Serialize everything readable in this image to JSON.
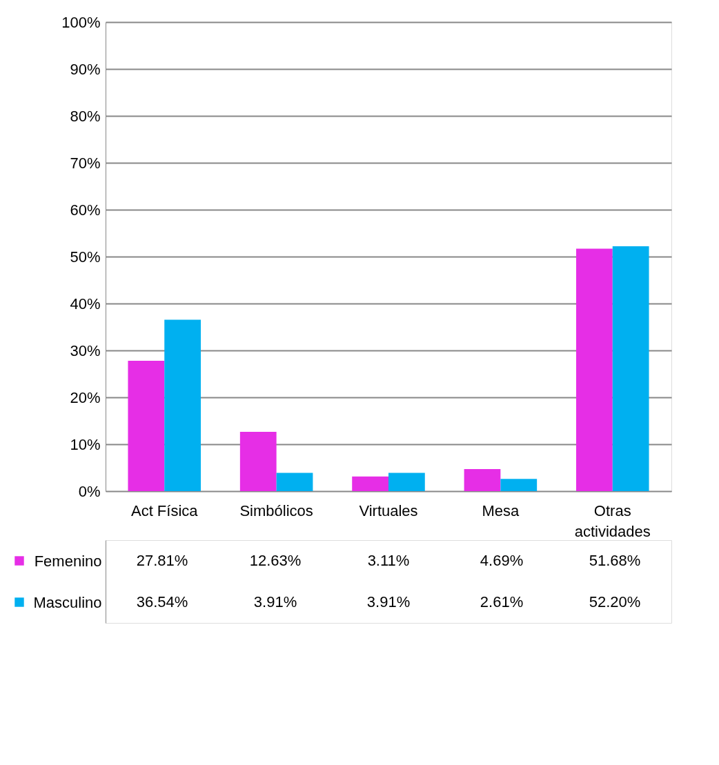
{
  "chart_data": {
    "type": "bar",
    "categories": [
      "Act Física",
      "Simbólicos",
      "Virtuales",
      "Mesa",
      "Otras actividades"
    ],
    "series": [
      {
        "name": "Femenino",
        "color": "#e62ee6",
        "values": [
          27.81,
          12.63,
          3.11,
          4.69,
          51.68
        ],
        "value_labels": [
          "27.81%",
          "12.63%",
          "3.11%",
          "4.69%",
          "51.68%"
        ]
      },
      {
        "name": "Masculino",
        "color": "#00b0f0",
        "values": [
          36.54,
          3.91,
          3.91,
          2.61,
          52.2
        ],
        "value_labels": [
          "36.54%",
          "3.91%",
          "3.91%",
          "2.61%",
          "52.20%"
        ]
      }
    ],
    "ylim": [
      0,
      100
    ],
    "yticks": [
      {
        "value": 0,
        "label": "0%"
      },
      {
        "value": 10,
        "label": "10%"
      },
      {
        "value": 20,
        "label": "20%"
      },
      {
        "value": 30,
        "label": "30%"
      },
      {
        "value": 40,
        "label": "40%"
      },
      {
        "value": 50,
        "label": "50%"
      },
      {
        "value": 60,
        "label": "60%"
      },
      {
        "value": 70,
        "label": "70%"
      },
      {
        "value": 80,
        "label": "80%"
      },
      {
        "value": 90,
        "label": "90%"
      },
      {
        "value": 100,
        "label": "100%"
      }
    ],
    "grid": "y",
    "legend": "bottom left"
  }
}
